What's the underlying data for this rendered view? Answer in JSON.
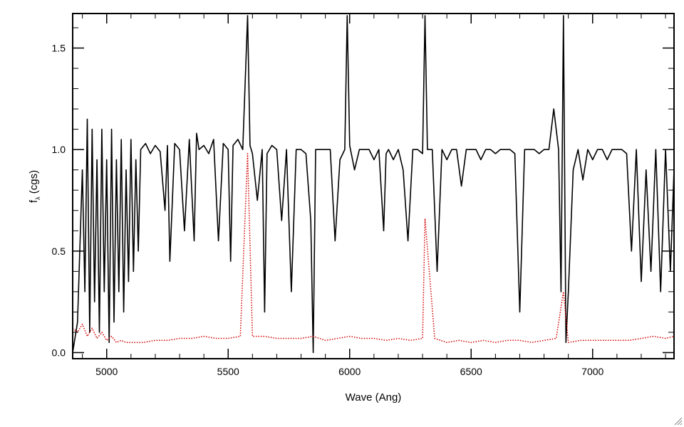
{
  "chart_data": {
    "type": "line",
    "title": "",
    "xlabel": "Wave (Ang)",
    "ylabel": "f_λ (cgs)",
    "ylabel_main": "f",
    "ylabel_sub": "λ",
    "ylabel_unit": "(cgs)",
    "xlim": [
      4860,
      7335
    ],
    "ylim": [
      -0.03,
      1.67
    ],
    "x_ticks": [
      5000,
      5500,
      6000,
      6500,
      7000
    ],
    "x_tick_labels": [
      "5000",
      "5500",
      "6000",
      "6500",
      "7000"
    ],
    "y_ticks": [
      0.0,
      0.5,
      1.0,
      1.5
    ],
    "y_tick_labels": [
      "0.0",
      "0.5",
      "1.0",
      "1.5"
    ],
    "grid": false,
    "legend": "none",
    "series": [
      {
        "role": "flux",
        "style": "solid",
        "color": "#000000",
        "x": [
          4860,
          4880,
          4900,
          4910,
          4920,
          4930,
          4940,
          4950,
          4960,
          4970,
          4980,
          4990,
          5000,
          5010,
          5020,
          5030,
          5040,
          5050,
          5060,
          5070,
          5080,
          5090,
          5100,
          5110,
          5120,
          5130,
          5140,
          5160,
          5180,
          5200,
          5220,
          5240,
          5250,
          5260,
          5280,
          5300,
          5320,
          5340,
          5360,
          5370,
          5380,
          5400,
          5420,
          5440,
          5460,
          5480,
          5500,
          5510,
          5520,
          5540,
          5560,
          5580,
          5590,
          5600,
          5620,
          5640,
          5650,
          5660,
          5680,
          5700,
          5720,
          5740,
          5760,
          5780,
          5800,
          5820,
          5840,
          5850,
          5860,
          5880,
          5900,
          5920,
          5940,
          5960,
          5980,
          5990,
          6000,
          6020,
          6040,
          6060,
          6080,
          6100,
          6120,
          6140,
          6150,
          6160,
          6180,
          6200,
          6220,
          6240,
          6260,
          6280,
          6300,
          6310,
          6320,
          6340,
          6360,
          6380,
          6400,
          6420,
          6440,
          6460,
          6480,
          6500,
          6520,
          6540,
          6560,
          6580,
          6600,
          6620,
          6640,
          6660,
          6680,
          6700,
          6720,
          6740,
          6760,
          6780,
          6800,
          6820,
          6840,
          6860,
          6870,
          6880,
          6890,
          6900,
          6920,
          6940,
          6960,
          6980,
          7000,
          7020,
          7040,
          7060,
          7080,
          7100,
          7120,
          7140,
          7160,
          7180,
          7200,
          7220,
          7240,
          7260,
          7280,
          7300,
          7320,
          7335
        ],
        "y": [
          0.0,
          0.15,
          0.9,
          0.3,
          1.15,
          0.1,
          1.1,
          0.25,
          0.95,
          0.1,
          1.1,
          0.3,
          0.95,
          0.05,
          1.1,
          0.15,
          0.95,
          0.3,
          1.05,
          0.2,
          0.9,
          0.35,
          1.05,
          0.4,
          0.95,
          0.5,
          1.0,
          1.03,
          0.98,
          1.02,
          0.99,
          0.7,
          1.02,
          0.45,
          1.03,
          1.0,
          0.6,
          1.05,
          0.55,
          1.08,
          1.0,
          1.02,
          0.98,
          1.05,
          0.55,
          1.03,
          1.0,
          0.45,
          1.02,
          1.05,
          1.0,
          1.66,
          1.02,
          0.98,
          0.75,
          1.0,
          0.2,
          0.98,
          1.02,
          1.0,
          0.65,
          1.0,
          0.3,
          1.0,
          1.0,
          0.98,
          0.65,
          0.0,
          1.0,
          1.0,
          1.0,
          1.0,
          0.55,
          0.95,
          1.0,
          1.66,
          1.02,
          0.9,
          1.0,
          1.0,
          1.0,
          0.95,
          1.0,
          0.6,
          0.98,
          1.0,
          0.95,
          1.0,
          0.9,
          0.55,
          1.0,
          1.0,
          0.98,
          1.66,
          1.0,
          1.0,
          0.4,
          1.0,
          0.95,
          1.0,
          1.0,
          0.82,
          1.0,
          1.0,
          1.0,
          0.95,
          1.0,
          1.0,
          0.98,
          1.0,
          1.0,
          1.0,
          0.98,
          0.2,
          1.0,
          1.0,
          1.0,
          0.98,
          1.0,
          1.0,
          1.2,
          1.0,
          0.3,
          1.66,
          0.05,
          0.3,
          0.9,
          1.0,
          0.85,
          1.0,
          0.95,
          1.0,
          1.0,
          0.95,
          1.0,
          1.0,
          1.0,
          0.98,
          0.5,
          1.0,
          0.35,
          0.9,
          0.4,
          1.0,
          0.3,
          1.0,
          0.4,
          0.9
        ]
      },
      {
        "role": "error",
        "style": "dotted",
        "color": "#d40000",
        "x": [
          4860,
          4880,
          4900,
          4920,
          4940,
          4960,
          4980,
          5000,
          5020,
          5040,
          5060,
          5080,
          5100,
          5150,
          5200,
          5250,
          5300,
          5350,
          5400,
          5450,
          5500,
          5550,
          5580,
          5600,
          5650,
          5700,
          5750,
          5800,
          5850,
          5900,
          5950,
          6000,
          6050,
          6100,
          6150,
          6200,
          6250,
          6300,
          6310,
          6350,
          6400,
          6450,
          6500,
          6550,
          6600,
          6650,
          6700,
          6750,
          6800,
          6850,
          6880,
          6900,
          6950,
          7000,
          7050,
          7100,
          7150,
          7200,
          7250,
          7300,
          7335
        ],
        "y": [
          0.12,
          0.1,
          0.14,
          0.08,
          0.12,
          0.07,
          0.1,
          0.06,
          0.08,
          0.05,
          0.06,
          0.05,
          0.05,
          0.05,
          0.06,
          0.06,
          0.07,
          0.07,
          0.08,
          0.07,
          0.07,
          0.08,
          0.98,
          0.08,
          0.08,
          0.07,
          0.07,
          0.07,
          0.08,
          0.06,
          0.07,
          0.08,
          0.07,
          0.07,
          0.06,
          0.07,
          0.06,
          0.07,
          0.66,
          0.07,
          0.05,
          0.06,
          0.05,
          0.06,
          0.05,
          0.06,
          0.06,
          0.05,
          0.06,
          0.07,
          0.3,
          0.05,
          0.06,
          0.06,
          0.06,
          0.06,
          0.06,
          0.07,
          0.08,
          0.07,
          0.08
        ]
      }
    ]
  },
  "window": {
    "resize_grip_icon": "resize-grip-icon"
  }
}
